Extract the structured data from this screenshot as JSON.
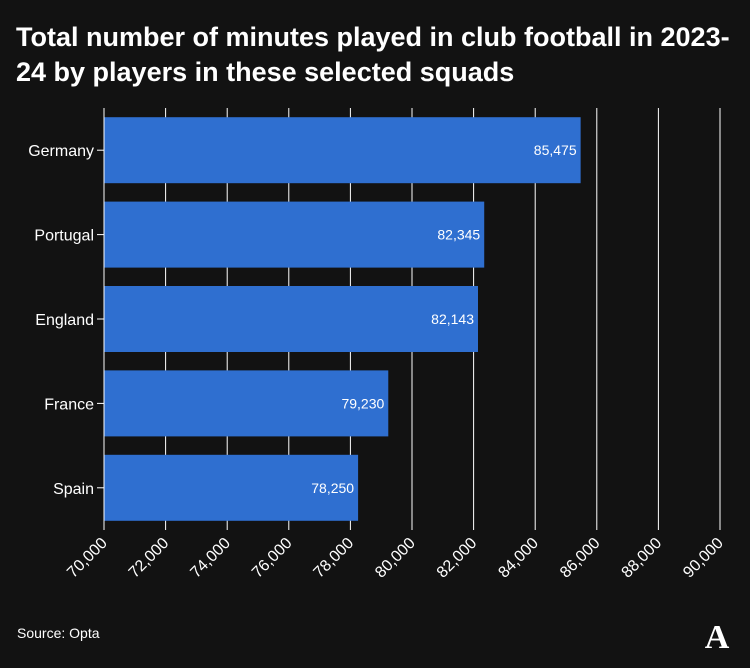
{
  "chart_data": {
    "type": "bar",
    "orientation": "horizontal",
    "title": "Total number of minutes played in club football in 2023-24 by players in these selected squads",
    "categories": [
      "Germany",
      "Portugal",
      "England",
      "France",
      "Spain"
    ],
    "values": [
      85475,
      82345,
      82143,
      79230,
      78250
    ],
    "value_labels": [
      "85,475",
      "82,345",
      "82,143",
      "79,230",
      "78,250"
    ],
    "xlim": [
      70000,
      90000
    ],
    "xticks": [
      70000,
      72000,
      74000,
      76000,
      78000,
      80000,
      82000,
      84000,
      86000,
      88000,
      90000
    ],
    "xtick_labels": [
      "70,000",
      "72,000",
      "74,000",
      "76,000",
      "78,000",
      "80,000",
      "82,000",
      "84,000",
      "86,000",
      "88,000",
      "90,000"
    ],
    "xlabel": "",
    "ylabel": "",
    "grid": true,
    "colors": {
      "bar": "#2f6fd0",
      "background": "#121212",
      "grid": "#ffffff",
      "text": "#ffffff"
    }
  },
  "source": "Source: Opta",
  "logo": {
    "icon": "publisher-logo-icon",
    "letter": "A"
  }
}
